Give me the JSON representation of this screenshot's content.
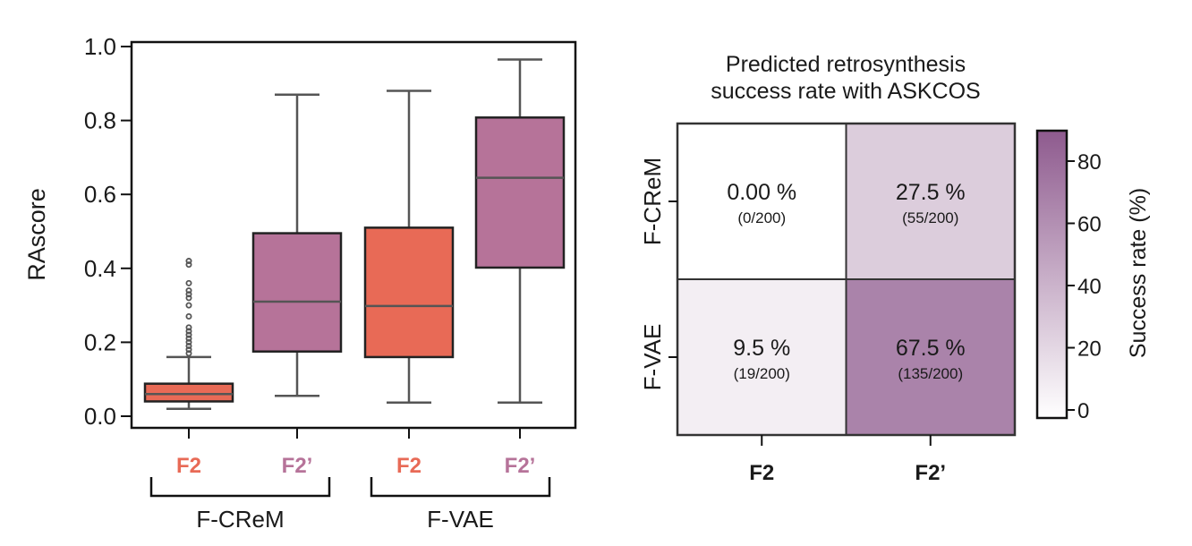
{
  "chart_data": [
    {
      "type": "box",
      "ylabel": "RAscore",
      "ylim": [
        0,
        1.0
      ],
      "yticks": [
        "0.0",
        "0.2",
        "0.4",
        "0.6",
        "0.8",
        "1.0"
      ],
      "categories": [
        "F2",
        "F2’",
        "F2",
        "F2’"
      ],
      "groups": [
        {
          "label": "F-CReM",
          "members": [
            0,
            1
          ]
        },
        {
          "label": "F-VAE",
          "members": [
            2,
            3
          ]
        }
      ],
      "colors": {
        "F2": "#e86a56",
        "F2’": "#b67399"
      },
      "boxes": [
        {
          "label": "F2",
          "group": "F-CReM",
          "whisker_low": 0.02,
          "q1": 0.04,
          "median": 0.06,
          "q3": 0.088,
          "whisker_high": 0.16,
          "outliers": [
            0.17,
            0.18,
            0.19,
            0.2,
            0.21,
            0.22,
            0.23,
            0.24,
            0.27,
            0.3,
            0.32,
            0.33,
            0.34,
            0.36,
            0.41,
            0.42
          ]
        },
        {
          "label": "F2’",
          "group": "F-CReM",
          "whisker_low": 0.055,
          "q1": 0.175,
          "median": 0.31,
          "q3": 0.495,
          "whisker_high": 0.87,
          "outliers": []
        },
        {
          "label": "F2",
          "group": "F-VAE",
          "whisker_low": 0.037,
          "q1": 0.16,
          "median": 0.298,
          "q3": 0.51,
          "whisker_high": 0.88,
          "outliers": []
        },
        {
          "label": "F2’",
          "group": "F-VAE",
          "whisker_low": 0.037,
          "q1": 0.402,
          "median": 0.645,
          "q3": 0.808,
          "whisker_high": 0.965,
          "outliers": []
        }
      ]
    },
    {
      "type": "heatmap",
      "title": [
        "Predicted retrosynthesis",
        "success rate with ASKCOS"
      ],
      "rows": [
        "F-CReM",
        "F-VAE"
      ],
      "cols": [
        "F2",
        "F2’"
      ],
      "values": [
        [
          0.0,
          27.5
        ],
        [
          9.5,
          67.5
        ]
      ],
      "labels": [
        [
          "0.00 %",
          "27.5 %"
        ],
        [
          "9.5 %",
          "67.5 %"
        ]
      ],
      "sublabels": [
        [
          "(0/200)",
          "(55/200)"
        ],
        [
          "(19/200)",
          "(135/200)"
        ]
      ],
      "colorbar": {
        "label": "Success rate (%)",
        "range": [
          0,
          90
        ],
        "ticks": [
          "0",
          "20",
          "40",
          "60",
          "80"
        ],
        "color_low": "#ffffff",
        "color_high": "#8e5a8e"
      }
    }
  ]
}
